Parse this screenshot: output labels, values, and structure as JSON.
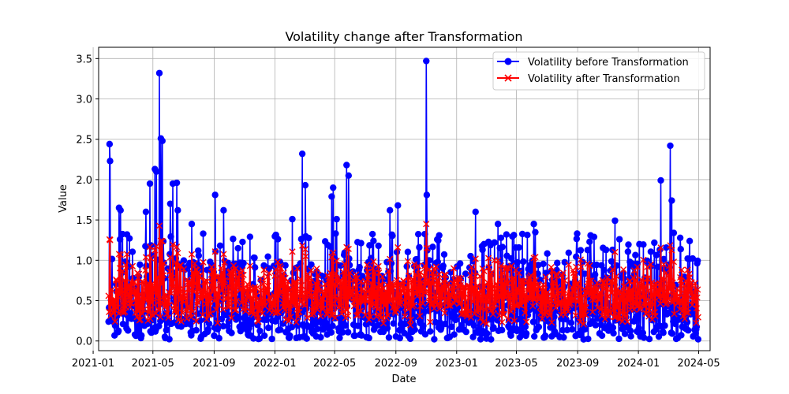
{
  "chart_data": {
    "type": "line",
    "title": "Volatility change after Transformation",
    "xlabel": "Date",
    "ylabel": "Value",
    "xlim": [
      "2021-01-12",
      "2024-05-24"
    ],
    "ylim": [
      -0.12,
      3.64
    ],
    "x_ticks": [
      "2021-01",
      "2021-05",
      "2021-09",
      "2022-01",
      "2022-05",
      "2022-09",
      "2023-01",
      "2023-05",
      "2023-09",
      "2024-01",
      "2024-05"
    ],
    "y_ticks": [
      "0.0",
      "0.5",
      "1.0",
      "1.5",
      "2.0",
      "2.5",
      "3.0",
      "3.5"
    ],
    "grid": true,
    "legend_position": "upper right",
    "x_start": "2021-02-01",
    "x_end": "2024-04-30",
    "series": [
      {
        "name": "Volatility before Transformation",
        "color": "#0000ff",
        "marker": "circle",
        "spikes": [
          {
            "date": "2021-02-03",
            "value": 2.44
          },
          {
            "date": "2021-02-04",
            "value": 2.23
          },
          {
            "date": "2021-02-22",
            "value": 1.65
          },
          {
            "date": "2021-02-25",
            "value": 1.62
          },
          {
            "date": "2021-03-10",
            "value": 1.32
          },
          {
            "date": "2021-04-17",
            "value": 1.6
          },
          {
            "date": "2021-04-25",
            "value": 1.95
          },
          {
            "date": "2021-05-05",
            "value": 2.13
          },
          {
            "date": "2021-05-08",
            "value": 2.1
          },
          {
            "date": "2021-05-14",
            "value": 3.32
          },
          {
            "date": "2021-05-17",
            "value": 2.51
          },
          {
            "date": "2021-05-20",
            "value": 2.48
          },
          {
            "date": "2021-06-05",
            "value": 1.7
          },
          {
            "date": "2021-06-10",
            "value": 1.95
          },
          {
            "date": "2021-06-18",
            "value": 1.96
          },
          {
            "date": "2021-06-20",
            "value": 1.62
          },
          {
            "date": "2021-07-18",
            "value": 1.45
          },
          {
            "date": "2021-08-10",
            "value": 1.33
          },
          {
            "date": "2021-09-03",
            "value": 1.81
          },
          {
            "date": "2021-09-20",
            "value": 1.62
          },
          {
            "date": "2022-02-05",
            "value": 1.51
          },
          {
            "date": "2022-02-25",
            "value": 2.32
          },
          {
            "date": "2022-03-03",
            "value": 1.93
          },
          {
            "date": "2022-04-25",
            "value": 1.79
          },
          {
            "date": "2022-04-28",
            "value": 1.9
          },
          {
            "date": "2022-05-05",
            "value": 1.51
          },
          {
            "date": "2022-05-25",
            "value": 2.18
          },
          {
            "date": "2022-05-29",
            "value": 2.05
          },
          {
            "date": "2022-08-20",
            "value": 1.62
          },
          {
            "date": "2022-09-05",
            "value": 1.68
          },
          {
            "date": "2022-11-01",
            "value": 3.47
          },
          {
            "date": "2022-11-02",
            "value": 1.81
          },
          {
            "date": "2023-02-08",
            "value": 1.6
          },
          {
            "date": "2023-03-25",
            "value": 1.45
          },
          {
            "date": "2023-06-05",
            "value": 1.45
          },
          {
            "date": "2023-11-15",
            "value": 1.49
          },
          {
            "date": "2024-02-15",
            "value": 1.99
          },
          {
            "date": "2024-03-05",
            "value": 2.42
          },
          {
            "date": "2024-03-08",
            "value": 1.74
          }
        ]
      },
      {
        "name": "Volatility after Transformation",
        "color": "#ff0000",
        "marker": "x"
      }
    ]
  }
}
